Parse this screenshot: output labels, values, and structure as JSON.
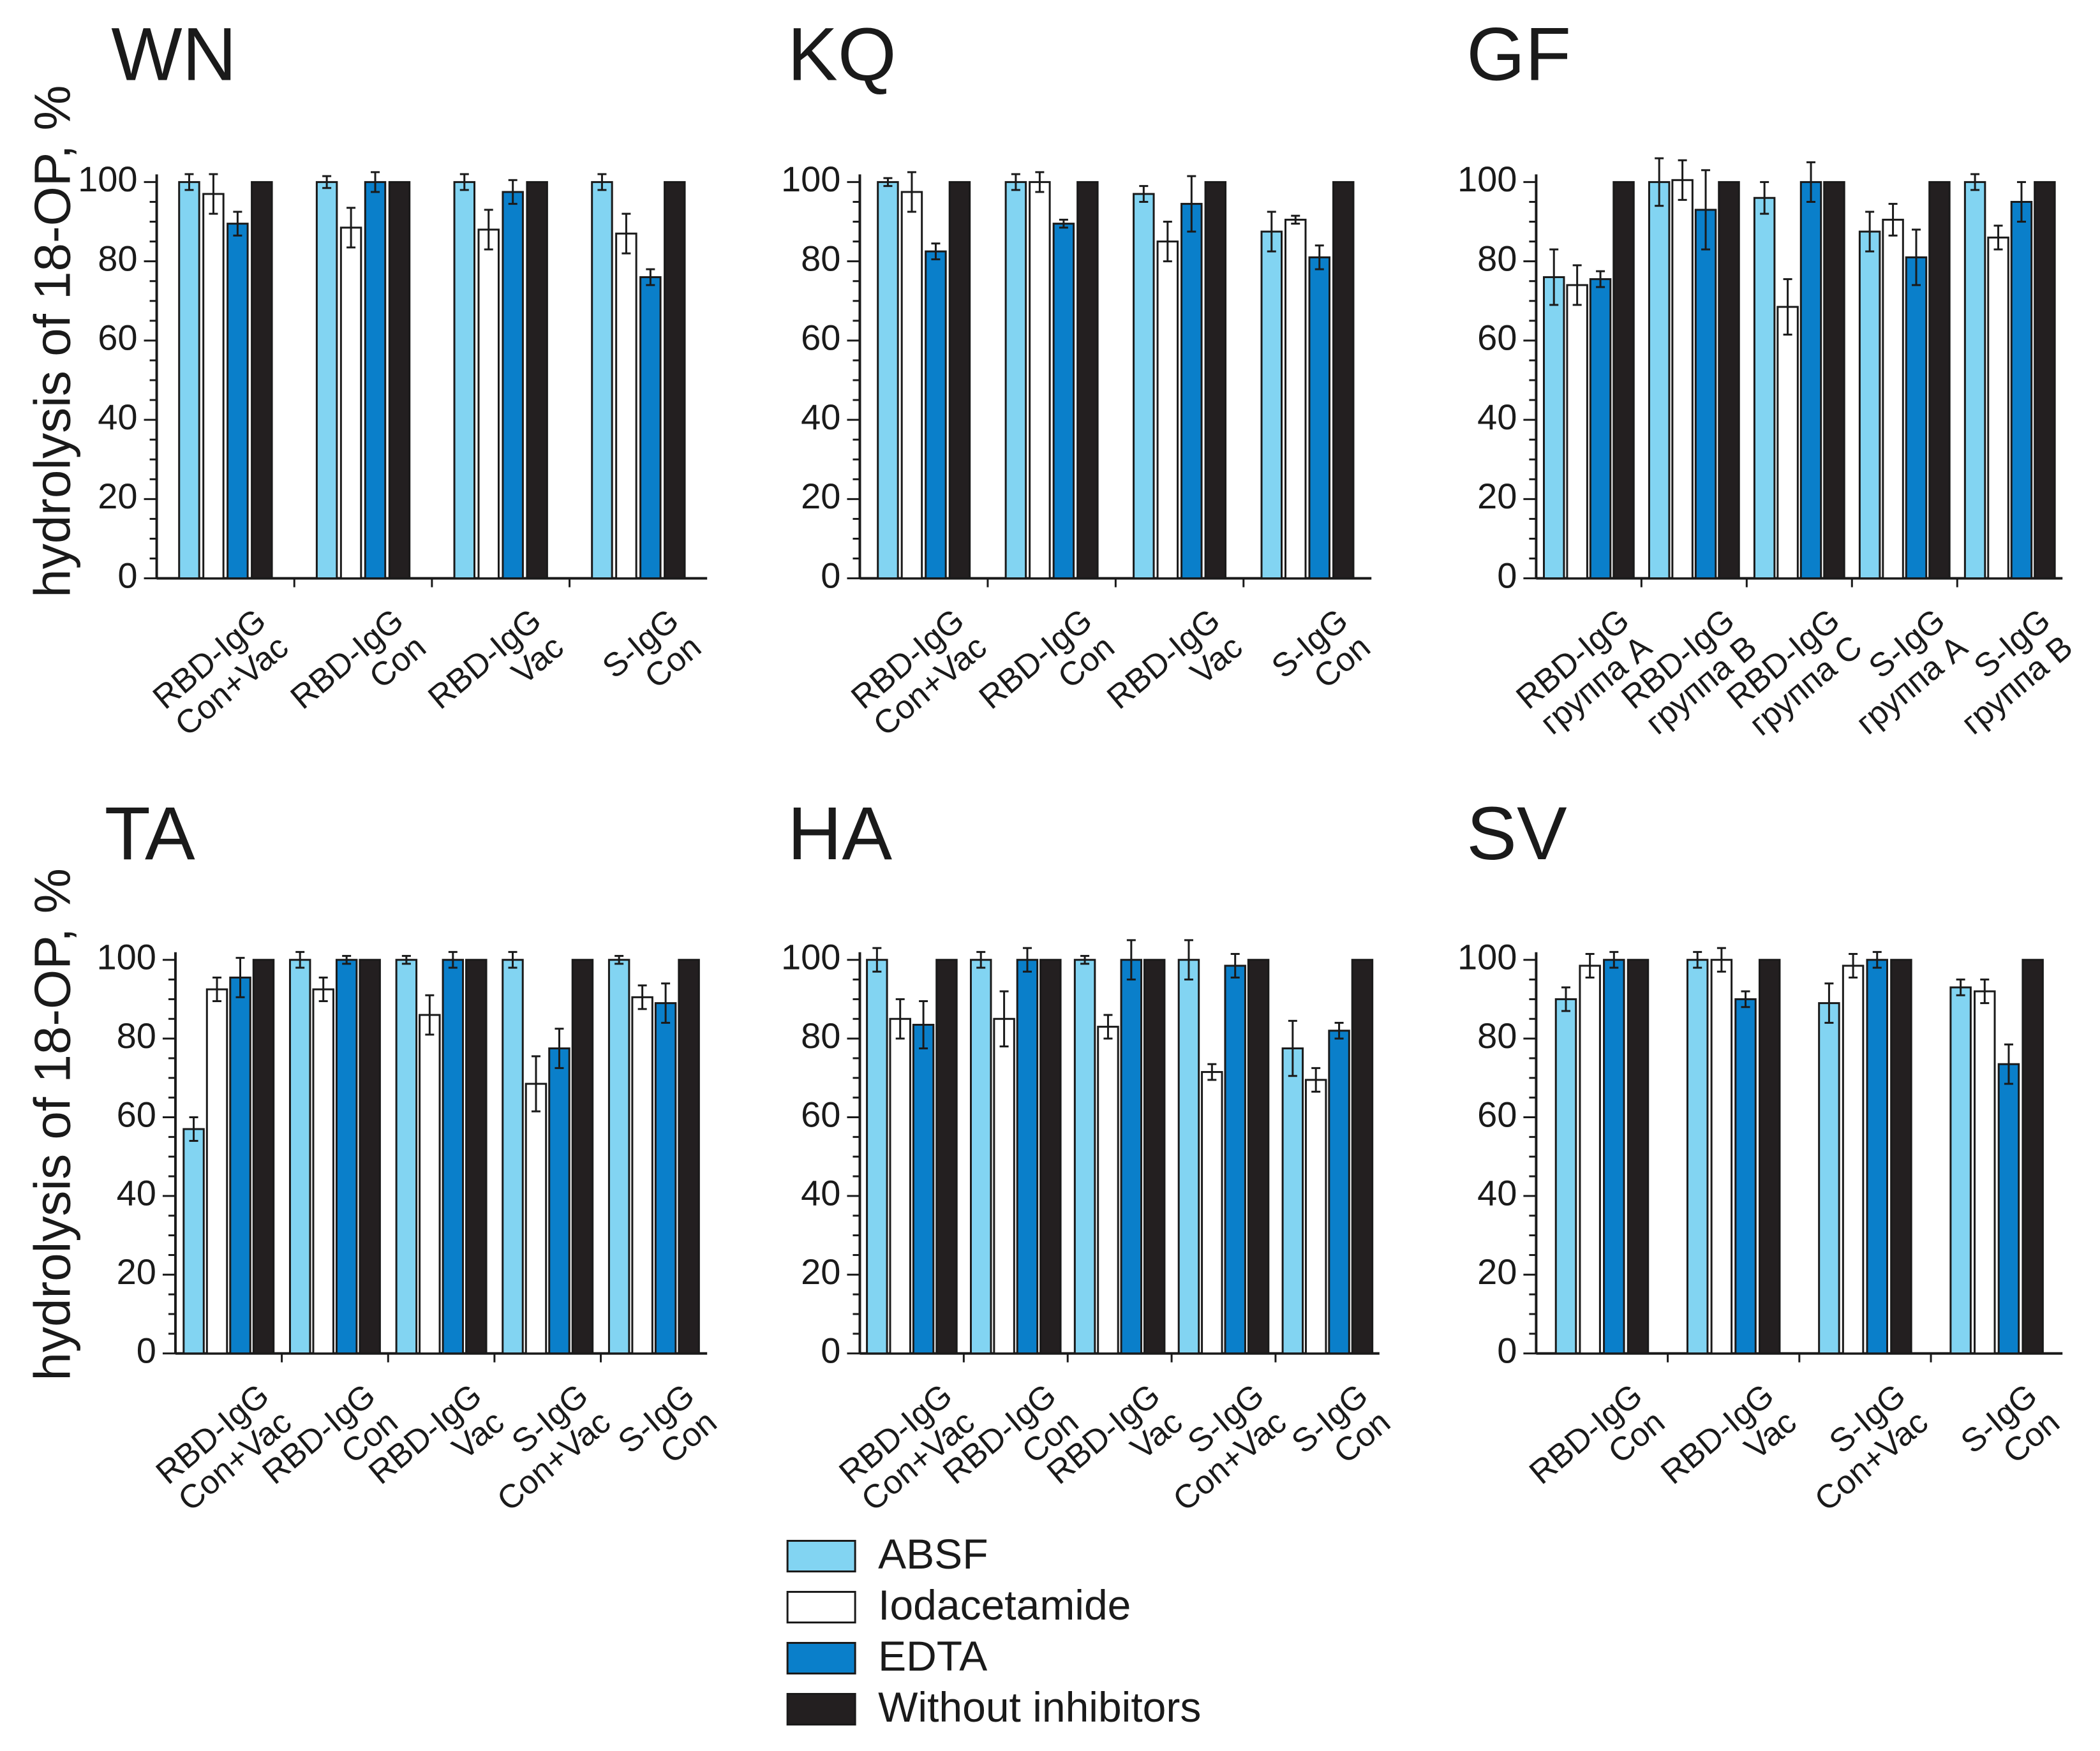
{
  "ylabel_text": "hydrolysis of 18-OP, %",
  "legend": {
    "items": [
      {
        "label": "ABSF",
        "color": "#82d4f2"
      },
      {
        "label": "Iodacetamide",
        "color": "#ffffff"
      },
      {
        "label": "EDTA",
        "color": "#0a7fca"
      },
      {
        "label": "Without inhibitors",
        "color": "#231f20"
      }
    ]
  },
  "chart_data": [
    {
      "type": "bar",
      "title": "WN",
      "ylabel": "hydrolysis of 18-OP, %",
      "ylim": [
        0,
        100
      ],
      "yticks": [
        "0",
        "20",
        "40",
        "60",
        "80",
        "100"
      ],
      "categories": [
        [
          "RBD-IgG",
          "Con+Vac"
        ],
        [
          "RBD-IgG",
          "Con"
        ],
        [
          "RBD-IgG",
          "Vac"
        ],
        [
          "S-IgG",
          "Con"
        ]
      ],
      "series": [
        {
          "name": "ABSF",
          "values": [
            100,
            100,
            100,
            100
          ],
          "errors": [
            2,
            1.5,
            2,
            2
          ]
        },
        {
          "name": "Iodacetamide",
          "values": [
            97,
            88.5,
            88,
            87
          ],
          "errors": [
            5,
            5,
            5,
            5
          ]
        },
        {
          "name": "EDTA",
          "values": [
            89.5,
            100,
            97.5,
            76
          ],
          "errors": [
            3,
            2.5,
            3,
            2
          ]
        },
        {
          "name": "Without inhibitors",
          "values": [
            100,
            100,
            100,
            100
          ],
          "errors": [
            0,
            0,
            0,
            0
          ]
        }
      ]
    },
    {
      "type": "bar",
      "title": "KQ",
      "ylabel": "",
      "ylim": [
        0,
        100
      ],
      "yticks": [
        "0",
        "20",
        "40",
        "60",
        "80",
        "100"
      ],
      "categories": [
        [
          "RBD-IgG",
          "Con+Vac"
        ],
        [
          "RBD-IgG",
          "Con"
        ],
        [
          "RBD-IgG",
          "Vac"
        ],
        [
          "S-IgG",
          "Con"
        ]
      ],
      "series": [
        {
          "name": "ABSF",
          "values": [
            100,
            100,
            97,
            87.5
          ],
          "errors": [
            1,
            2,
            2,
            5
          ]
        },
        {
          "name": "Iodacetamide",
          "values": [
            97.5,
            100,
            85,
            90.5
          ],
          "errors": [
            5,
            2.5,
            5,
            1
          ]
        },
        {
          "name": "EDTA",
          "values": [
            82.5,
            89.5,
            94.5,
            81
          ],
          "errors": [
            2,
            1,
            7,
            3
          ]
        },
        {
          "name": "Without inhibitors",
          "values": [
            100,
            100,
            100,
            100
          ],
          "errors": [
            0,
            0,
            0,
            0
          ]
        }
      ]
    },
    {
      "type": "bar",
      "title": "GF",
      "ylabel": "",
      "ylim": [
        0,
        100
      ],
      "yticks": [
        "0",
        "20",
        "40",
        "60",
        "80",
        "100"
      ],
      "categories": [
        [
          "RBD-IgG",
          "группа A"
        ],
        [
          "RBD-IgG",
          "группа B"
        ],
        [
          "RBD-IgG",
          "группа C"
        ],
        [
          "S-IgG",
          "группа A"
        ],
        [
          "S-IgG",
          "группа B"
        ]
      ],
      "series": [
        {
          "name": "ABSF",
          "values": [
            76,
            100,
            96,
            87.5,
            100
          ],
          "errors": [
            7,
            6,
            4,
            5,
            2
          ]
        },
        {
          "name": "Iodacetamide",
          "values": [
            74,
            100.5,
            68.5,
            90.5,
            86
          ],
          "errors": [
            5,
            5,
            7,
            4,
            3
          ]
        },
        {
          "name": "EDTA",
          "values": [
            75.5,
            93,
            100,
            81,
            95
          ],
          "errors": [
            2,
            10,
            5,
            7,
            5
          ]
        },
        {
          "name": "Without inhibitors",
          "values": [
            100,
            100,
            100,
            100,
            100
          ],
          "errors": [
            0,
            0,
            0,
            0,
            0
          ]
        }
      ]
    },
    {
      "type": "bar",
      "title": "TA",
      "ylabel": "hydrolysis of 18-OP, %",
      "ylim": [
        0,
        100
      ],
      "yticks": [
        "0",
        "20",
        "40",
        "60",
        "80",
        "100"
      ],
      "categories": [
        [
          "RBD-IgG",
          "Con+Vac"
        ],
        [
          "RBD-IgG",
          "Con"
        ],
        [
          "RBD-IgG",
          "Vac"
        ],
        [
          "S-IgG",
          "Con+Vac"
        ],
        [
          "S-IgG",
          "Con"
        ]
      ],
      "series": [
        {
          "name": "ABSF",
          "values": [
            57,
            100,
            100,
            100,
            100
          ],
          "errors": [
            3,
            2,
            1,
            2,
            1
          ]
        },
        {
          "name": "Iodacetamide",
          "values": [
            92.5,
            92.5,
            86,
            68.5,
            90.5
          ],
          "errors": [
            3,
            3,
            5,
            7,
            3
          ]
        },
        {
          "name": "EDTA",
          "values": [
            95.5,
            100,
            100,
            77.5,
            89
          ],
          "errors": [
            5,
            1,
            2,
            5,
            5
          ]
        },
        {
          "name": "Without inhibitors",
          "values": [
            100,
            100,
            100,
            100,
            100
          ],
          "errors": [
            0,
            0,
            0,
            0,
            0
          ]
        }
      ]
    },
    {
      "type": "bar",
      "title": "HA",
      "ylabel": "",
      "ylim": [
        0,
        100
      ],
      "yticks": [
        "0",
        "20",
        "40",
        "60",
        "80",
        "100"
      ],
      "categories": [
        [
          "RBD-IgG",
          "Con+Vac"
        ],
        [
          "RBD-IgG",
          "Con"
        ],
        [
          "RBD-IgG",
          "Vac"
        ],
        [
          "S-IgG",
          "Con+Vac"
        ],
        [
          "S-IgG",
          "Con"
        ]
      ],
      "series": [
        {
          "name": "ABSF",
          "values": [
            100,
            100,
            100,
            100,
            77.5
          ],
          "errors": [
            3,
            2,
            1,
            5,
            7
          ]
        },
        {
          "name": "Iodacetamide",
          "values": [
            85,
            85,
            83,
            71.5,
            69.5
          ],
          "errors": [
            5,
            7,
            3,
            2,
            3
          ]
        },
        {
          "name": "EDTA",
          "values": [
            83.5,
            100,
            100,
            98.5,
            82
          ],
          "errors": [
            6,
            3,
            5,
            3,
            2
          ]
        },
        {
          "name": "Without inhibitors",
          "values": [
            100,
            100,
            100,
            100,
            100
          ],
          "errors": [
            0,
            0,
            0,
            0,
            0
          ]
        }
      ]
    },
    {
      "type": "bar",
      "title": "SV",
      "ylabel": "",
      "ylim": [
        0,
        100
      ],
      "yticks": [
        "0",
        "20",
        "40",
        "60",
        "80",
        "100"
      ],
      "categories": [
        [
          "RBD-IgG",
          "Con"
        ],
        [
          "RBD-IgG",
          "Vac"
        ],
        [
          "S-IgG",
          "Con+Vac"
        ],
        [
          "S-IgG",
          "Con"
        ]
      ],
      "series": [
        {
          "name": "ABSF",
          "values": [
            90,
            100,
            89,
            93
          ],
          "errors": [
            3,
            2,
            5,
            2
          ]
        },
        {
          "name": "Iodacetamide",
          "values": [
            98.5,
            100,
            98.5,
            92
          ],
          "errors": [
            3,
            3,
            3,
            3
          ]
        },
        {
          "name": "EDTA",
          "values": [
            100,
            90,
            100,
            73.5
          ],
          "errors": [
            2,
            2,
            2,
            5
          ]
        },
        {
          "name": "Without inhibitors",
          "values": [
            100,
            100,
            100,
            100
          ],
          "errors": [
            0,
            0,
            0,
            0
          ]
        }
      ]
    }
  ]
}
